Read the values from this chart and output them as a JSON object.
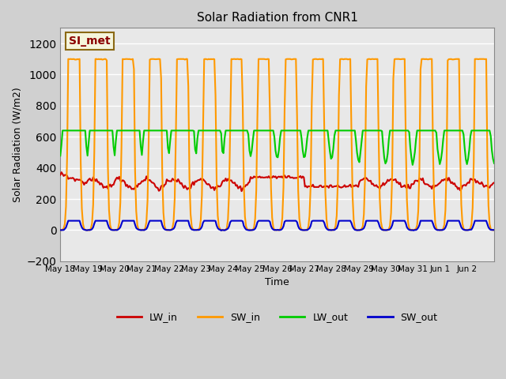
{
  "title": "Solar Radiation from CNR1",
  "xlabel": "Time",
  "ylabel": "Solar Radiation (W/m2)",
  "ylim": [
    -200,
    1300
  ],
  "yticks": [
    -200,
    0,
    200,
    400,
    600,
    800,
    1000,
    1200
  ],
  "plot_bg_color": "#e8e8e8",
  "grid_color": "white",
  "annotation_text": "SI_met",
  "annotation_color": "#8B0000",
  "annotation_bg": "#f5f5dc",
  "annotation_border": "#8B6914",
  "line_colors": {
    "LW_in": "#cc0000",
    "SW_in": "#ff9900",
    "LW_out": "#00cc00",
    "SW_out": "#0000cc"
  },
  "line_widths": {
    "LW_in": 1.5,
    "SW_in": 1.5,
    "LW_out": 1.5,
    "SW_out": 1.5
  },
  "x_tick_positions": [
    0,
    1,
    2,
    3,
    4,
    5,
    6,
    7,
    8,
    9,
    10,
    11,
    12,
    13,
    14,
    15
  ],
  "x_tick_labels": [
    "May 18",
    "May 19",
    "May 20",
    "May 21",
    "May 22",
    "May 23",
    "May 24",
    "May 25",
    "May 26",
    "May 27",
    "May 28",
    "May 29",
    "May 30",
    "May 31",
    "Jun 1",
    "Jun 2"
  ]
}
